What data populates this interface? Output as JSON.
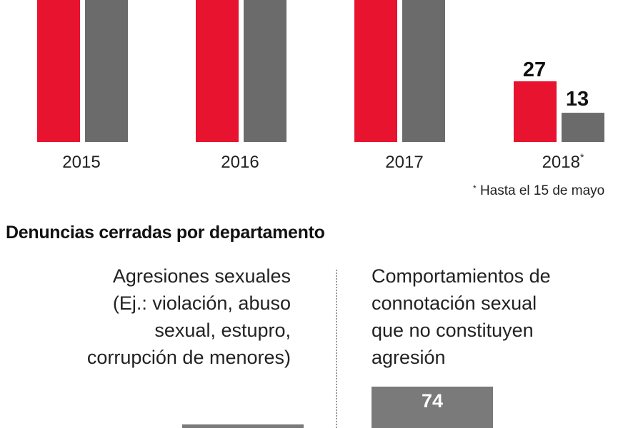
{
  "chart_data": {
    "type": "bar",
    "categories": [
      "2015",
      "2016",
      "2017",
      "2018"
    ],
    "category_superscripts": [
      "",
      "",
      "",
      "*"
    ],
    "series": [
      {
        "color": "#e8132f",
        "values": [
          null,
          null,
          null,
          27
        ]
      },
      {
        "color": "#6b6b6b",
        "values": [
          null,
          null,
          null,
          13
        ]
      }
    ],
    "value_labels": [
      "27",
      "13"
    ],
    "footnote_marker": "*",
    "footnote_text": "Hasta el 15 de mayo"
  },
  "section": {
    "title": "Denuncias cerradas por departamento",
    "left_department": {
      "lines": [
        "Agresiones sexuales",
        "(Ej.: violación, abuso",
        "sexual, estupro,",
        "corrupción de menores)"
      ]
    },
    "right_department": {
      "lines": [
        "Comportamientos de",
        "connotación sexual",
        "que no constituyen",
        "agresión"
      ],
      "value": "74",
      "bar_color": "#7a7a7a"
    }
  }
}
